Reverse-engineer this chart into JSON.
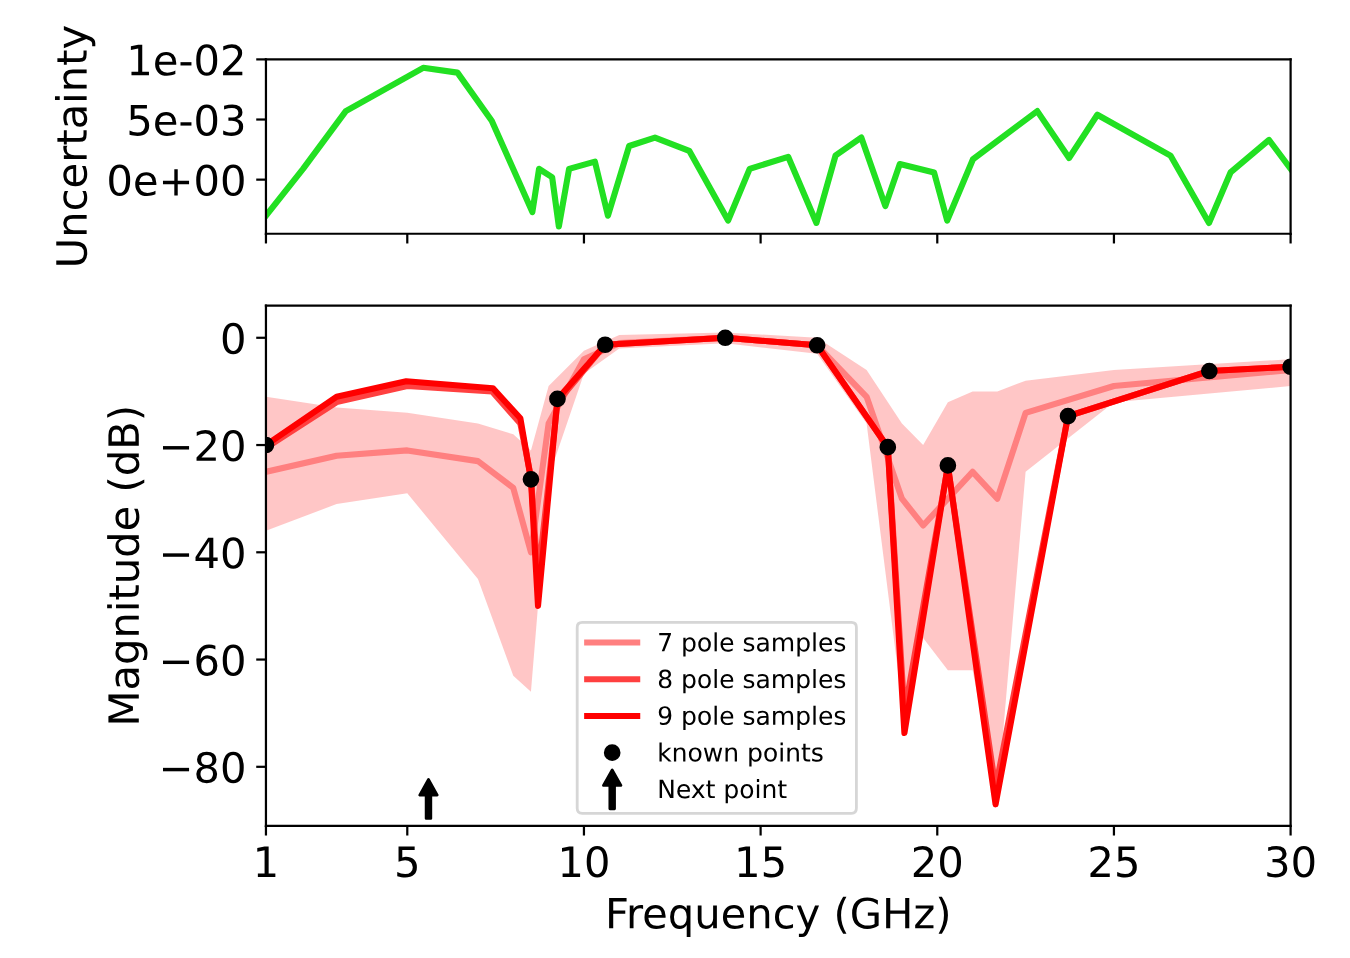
{
  "chart_data": [
    {
      "type": "line",
      "ylabel": "Uncertainty",
      "xlim": [
        1,
        30
      ],
      "xticks": [
        {
          "value": 1,
          "label": null
        },
        {
          "value": 5,
          "label": null
        },
        {
          "value": 10,
          "label": null
        },
        {
          "value": 15,
          "label": null
        },
        {
          "value": 20,
          "label": null
        },
        {
          "value": 25,
          "label": null
        },
        {
          "value": 30,
          "label": null
        }
      ],
      "ylim": [
        -0.0045,
        0.01
      ],
      "yticks": [
        {
          "value": 0,
          "label": "0e+00"
        },
        {
          "value": 0.005,
          "label": "5e-03"
        },
        {
          "value": 0.01,
          "label": "1e-02"
        }
      ],
      "tick_labels": "y",
      "grid": false,
      "legend": false,
      "marker": "none",
      "line_style": "solid",
      "series": [
        {
          "color": "#22e022",
          "x": [
            1,
            2.05,
            3.26,
            5.45,
            6.42,
            7.39,
            8.54,
            8.73,
            9.1,
            9.29,
            9.58,
            10.31,
            10.68,
            11.28,
            12.01,
            12.98,
            14.08,
            14.69,
            15.78,
            16.58,
            17.12,
            17.85,
            18.53,
            18.94,
            19.91,
            20.28,
            21.01,
            22.83,
            23.73,
            24.53,
            26.6,
            27.69,
            28.3,
            29.39,
            30
          ],
          "values": [
            -0.003,
            0.0009,
            0.0057,
            0.0093,
            0.0089,
            0.0049,
            -0.0027,
            0.0009,
            0.0002,
            -0.0039,
            0.0009,
            0.0015,
            -0.003,
            0.0028,
            0.0035,
            0.0024,
            -0.0034,
            0.0009,
            0.0019,
            -0.0036,
            0.002,
            0.0035,
            -0.0022,
            0.0013,
            0.0006,
            -0.0034,
            0.0017,
            0.0057,
            0.0018,
            0.0054,
            0.002,
            -0.0036,
            0.0006,
            0.0033,
            0.0009
          ]
        }
      ]
    },
    {
      "type": "line",
      "xlabel": "Frequency (GHz)",
      "ylabel": "Magnitude (dB)",
      "xlim": [
        1,
        30
      ],
      "xticks": [
        1,
        5,
        10,
        15,
        20,
        25,
        30
      ],
      "ylim": [
        -91,
        6
      ],
      "yticks": [
        {
          "value": 0,
          "label": "0"
        },
        {
          "value": -20,
          "label": "−20"
        },
        {
          "value": -40,
          "label": "−40"
        },
        {
          "value": -60,
          "label": "−60"
        },
        {
          "value": -80,
          "label": "−80"
        }
      ],
      "grid": false,
      "legend": "bottom",
      "line_style": "solid",
      "series": [
        {
          "name": "7 pole samples",
          "type": "line",
          "marker": "none",
          "color": "#ff8080",
          "x": [
            1,
            3,
            5,
            7,
            8,
            8.5,
            9,
            10,
            11,
            14,
            16.6,
            18,
            19,
            19.6,
            20.3,
            21,
            21.7,
            22.5,
            25,
            30
          ],
          "values": [
            -25,
            -22,
            -21,
            -23,
            -28,
            -40,
            -16,
            -4,
            -1,
            0,
            -1.4,
            -11,
            -30,
            -35,
            -30,
            -25,
            -30,
            -14,
            -9,
            -6
          ],
          "lower": [
            -36,
            -31,
            -29,
            -45,
            -63,
            -66,
            -26,
            -6.7,
            -2,
            -1,
            -3,
            -16,
            -68,
            -56,
            -62,
            -62,
            -86,
            -25,
            -12,
            -9
          ],
          "upper": [
            -11,
            -13,
            -14,
            -16,
            -18,
            -21,
            -9,
            -2.4,
            0.5,
            1,
            0,
            -6,
            -16,
            -20,
            -12,
            -10,
            -10,
            -8,
            -6,
            -4
          ]
        },
        {
          "name": "8 pole samples",
          "type": "line",
          "marker": "none",
          "color": "#ff4040",
          "x": [
            1,
            3,
            5,
            7.4,
            8.2,
            8.5,
            8.7,
            9.25,
            10.6,
            14,
            16.6,
            18.6,
            19.07,
            20.3,
            21.65,
            23.7,
            27.7,
            30
          ],
          "values": [
            -20.5,
            -12,
            -9,
            -10,
            -16,
            -26,
            -45,
            -12,
            -1.3,
            0,
            -1.4,
            -20.4,
            -70,
            -24,
            -84,
            -14.6,
            -6.2,
            -5.4
          ]
        },
        {
          "name": "9 pole samples",
          "type": "line",
          "marker": "none",
          "color": "#ff0000",
          "x": [
            1,
            3,
            4.97,
            7.42,
            8.2,
            8.5,
            8.7,
            9.25,
            10.6,
            14,
            16.6,
            18.6,
            19.07,
            20.3,
            21.65,
            23.7,
            27.7,
            30
          ],
          "values": [
            -20,
            -11,
            -8.1,
            -9.4,
            -15,
            -26.4,
            -50,
            -11.4,
            -1.3,
            0,
            -1.4,
            -20.4,
            -73.7,
            -23.8,
            -87,
            -14.6,
            -6.2,
            -5.4
          ]
        },
        {
          "name": "known points",
          "type": "scatter",
          "marker": "circle",
          "color": "#000000",
          "x": [
            1,
            8.5,
            9.25,
            10.6,
            14,
            16.6,
            18.6,
            20.3,
            23.7,
            27.7,
            30
          ],
          "values": [
            -20,
            -26.4,
            -11.4,
            -1.3,
            0,
            -1.4,
            -20.4,
            -23.8,
            -14.6,
            -6.2,
            -5.4
          ]
        },
        {
          "name": "Next point",
          "type": "scatter",
          "color": "#000000",
          "x": [
            5.6
          ],
          "values": [
            -86
          ]
        }
      ]
    }
  ]
}
